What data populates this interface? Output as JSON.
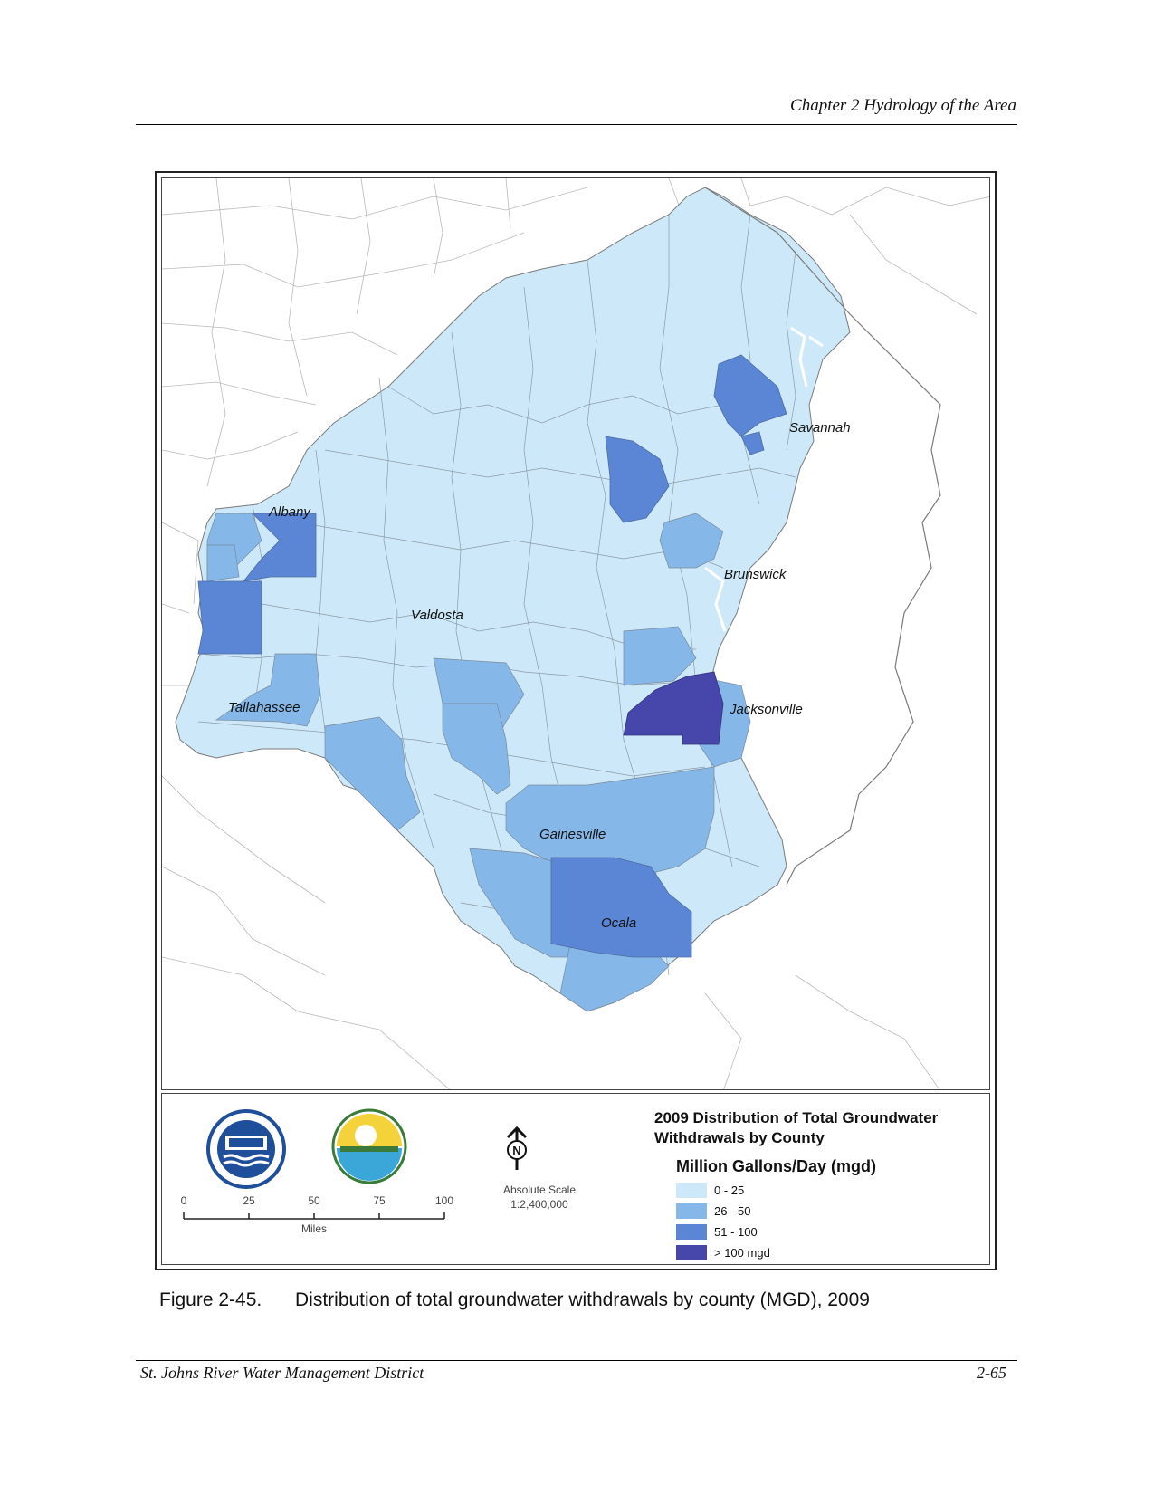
{
  "header": {
    "title": "Chapter 2 Hydrology of the Area"
  },
  "map": {
    "labels": {
      "savannah": "Savannah",
      "albany": "Albany",
      "brunswick": "Brunswick",
      "valdosta": "Valdosta",
      "tallahassee": "Tallahassee",
      "jacksonville": "Jacksonville",
      "gainesville": "Gainesville",
      "ocala": "Ocala"
    },
    "legend": {
      "title": "2009 Distribution of Total Groundwater Withdrawals by County",
      "units": "Million Gallons/Day (mgd)",
      "classes": [
        {
          "label": "0 - 25",
          "color": "#cde9f9"
        },
        {
          "label": "26 - 50",
          "color": "#86b7e9"
        },
        {
          "label": "51 - 100",
          "color": "#5b86d6"
        },
        {
          "label": "> 100 mgd",
          "color": "#4646ab"
        }
      ]
    },
    "scale_bar": {
      "ticks": [
        "0",
        "25",
        "50",
        "75",
        "100"
      ],
      "unit": "Miles",
      "absolute_label": "Absolute Scale",
      "ratio": "1:2,400,000"
    },
    "north_letter": "N"
  },
  "caption": {
    "number": "Figure 2-45.",
    "text": "Distribution of total groundwater withdrawals by county (MGD), 2009"
  },
  "footer": {
    "left": "St. Johns River Water Management District",
    "right": "2-65"
  }
}
